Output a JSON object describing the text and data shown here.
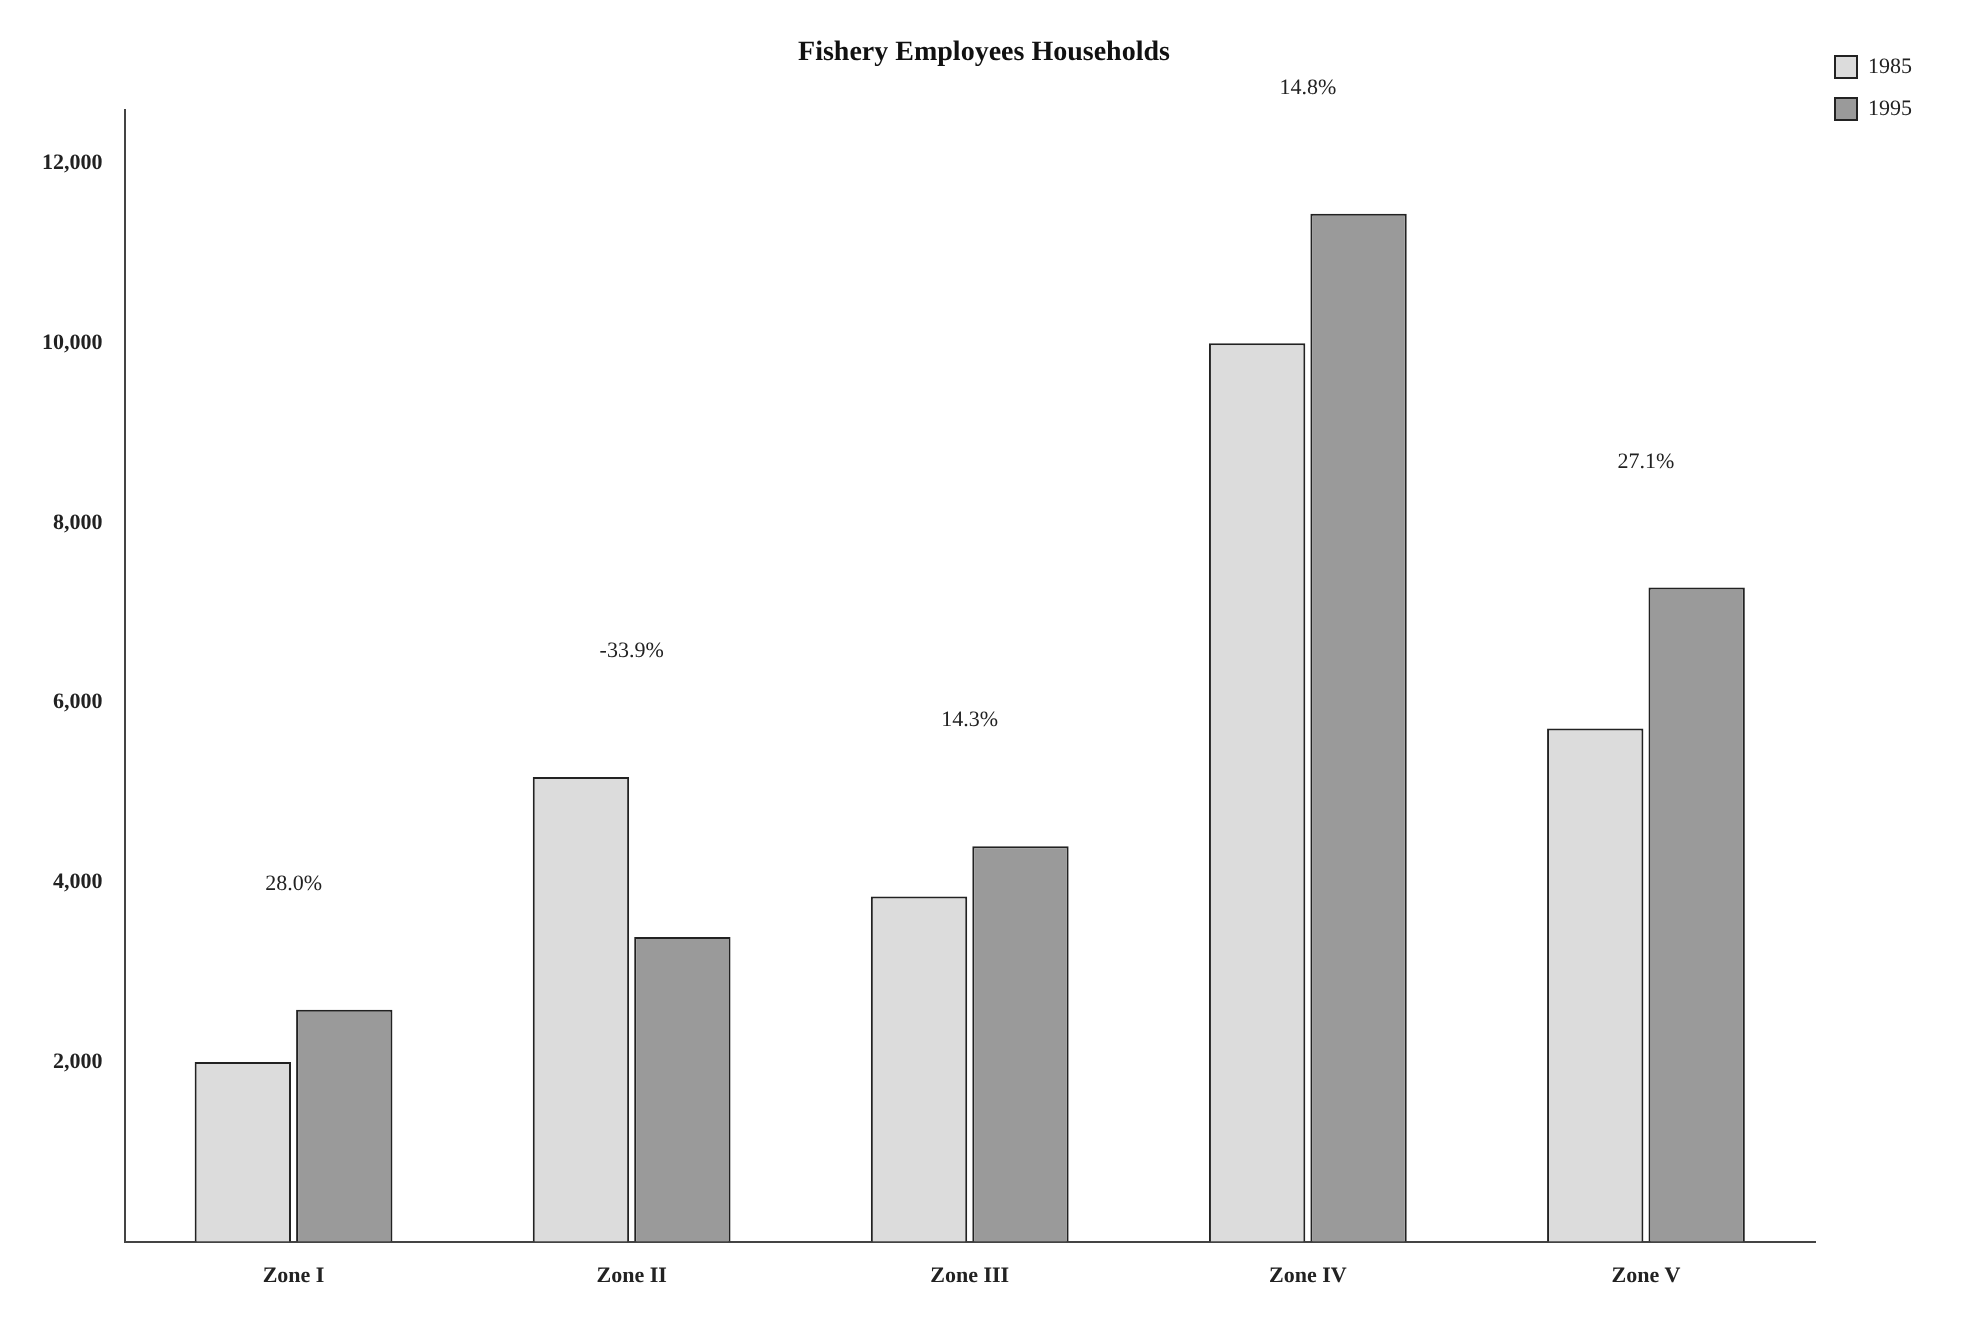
{
  "chart_data": {
    "type": "bar",
    "title": "Fishery Employees Households",
    "categories": [
      "Zone I",
      "Zone II",
      "Zone III",
      "Zone IV",
      "Zone V"
    ],
    "series": [
      {
        "name": "1985",
        "color": "#dcdcdc",
        "values": [
          2000,
          5170,
          3840,
          10000,
          5710
        ]
      },
      {
        "name": "1995",
        "color": "#9a9a9a",
        "values": [
          2580,
          3390,
          4400,
          11440,
          7280
        ]
      }
    ],
    "ylim": [
      0,
      12600
    ],
    "yticks": [
      {
        "value": 2000,
        "label": "2,000"
      },
      {
        "value": 4000,
        "label": "4,000"
      },
      {
        "value": 6000,
        "label": "6,000"
      },
      {
        "value": 8000,
        "label": "8,000"
      },
      {
        "value": 10000,
        "label": "10,000"
      },
      {
        "value": 12000,
        "label": "12,000"
      }
    ],
    "grid": false,
    "legend": "top right",
    "annotations": [
      "28.0%",
      "-33.9%",
      "14.3%",
      "14.8%",
      "27.1%"
    ]
  }
}
